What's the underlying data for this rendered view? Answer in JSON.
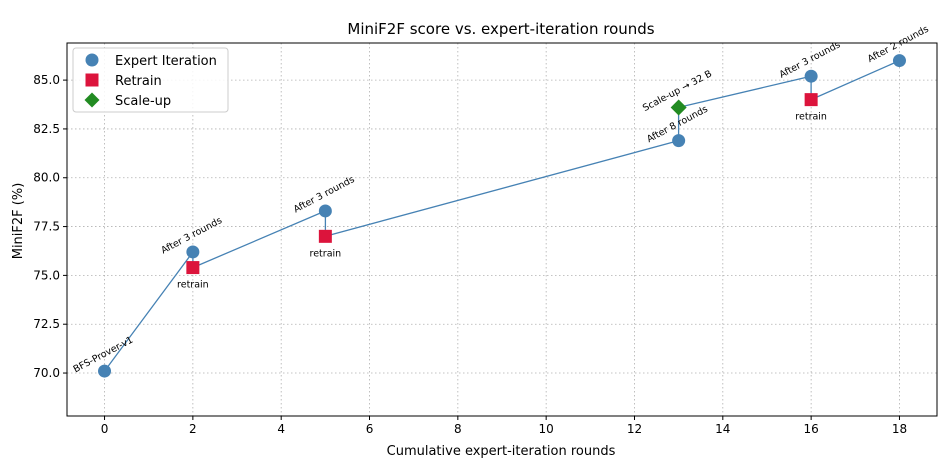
{
  "chart_data": {
    "type": "line",
    "title": "MiniF2F score vs. expert-iteration rounds",
    "xlabel": "Cumulative expert-iteration rounds",
    "ylabel": "MiniF2F (%)",
    "xlim": [
      -0.85,
      18.85
    ],
    "ylim": [
      67.8,
      86.9
    ],
    "xticks": [
      0,
      2,
      4,
      6,
      8,
      10,
      12,
      14,
      16,
      18
    ],
    "xtick_labels": [
      "0",
      "2",
      "4",
      "6",
      "8",
      "10",
      "12",
      "14",
      "16",
      "18"
    ],
    "yticks": [
      70.0,
      72.5,
      75.0,
      77.5,
      80.0,
      82.5,
      85.0
    ],
    "ytick_labels": [
      "70.0",
      "72.5",
      "75.0",
      "77.5",
      "80.0",
      "82.5",
      "85.0"
    ],
    "grid": true,
    "legend_position": "top-left",
    "main_line": [
      [
        0,
        70.1
      ],
      [
        2,
        76.2
      ],
      [
        2,
        75.4
      ],
      [
        5,
        78.3
      ],
      [
        5,
        77.0
      ],
      [
        13,
        81.9
      ],
      [
        13,
        83.6
      ],
      [
        16,
        85.2
      ],
      [
        16,
        84.0
      ],
      [
        18,
        86.0
      ]
    ],
    "series": [
      {
        "name": "Expert Iteration",
        "marker": "circle",
        "color": "#4682b4",
        "points": [
          {
            "x": 0,
            "y": 70.1,
            "label": "BFS-Prover-v1"
          },
          {
            "x": 2,
            "y": 76.2,
            "label": "After 3 rounds"
          },
          {
            "x": 5,
            "y": 78.3,
            "label": "After 3 rounds"
          },
          {
            "x": 13,
            "y": 81.9,
            "label": "After 8 rounds"
          },
          {
            "x": 16,
            "y": 85.2,
            "label": "After 3 rounds"
          },
          {
            "x": 18,
            "y": 86.0,
            "label": "After 2 rounds"
          }
        ]
      },
      {
        "name": "Retrain",
        "marker": "square",
        "color": "#dc143c",
        "points": [
          {
            "x": 2,
            "y": 75.4,
            "label": "retrain"
          },
          {
            "x": 5,
            "y": 77.0,
            "label": "retrain"
          },
          {
            "x": 16,
            "y": 84.0,
            "label": "retrain"
          }
        ]
      },
      {
        "name": "Scale-up",
        "marker": "diamond",
        "color": "#228b22",
        "points": [
          {
            "x": 13,
            "y": 83.6,
            "label": "Scale-up → 32 B"
          }
        ]
      }
    ]
  }
}
